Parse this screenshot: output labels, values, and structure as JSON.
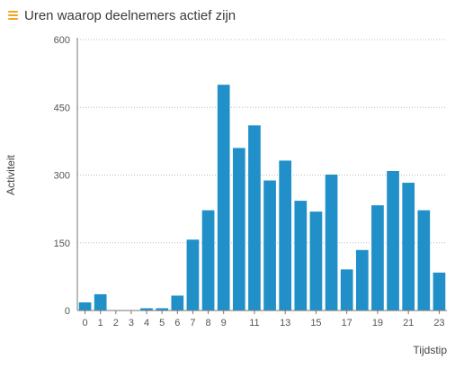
{
  "header": {
    "title": "Uren waarop deelnemers actief zijn",
    "menu_icon": "hamburger-menu-icon"
  },
  "chart_data": {
    "type": "bar",
    "xlabel": "Tijdstip",
    "ylabel": "Activiteit",
    "ylim": [
      0,
      600
    ],
    "yticks": [
      0,
      150,
      300,
      450,
      600
    ],
    "grid": true,
    "x_tick_labels": [
      "0",
      "1",
      "2",
      "3",
      "4",
      "5",
      "6",
      "7",
      "8",
      "9",
      "11",
      "13",
      "15",
      "17",
      "19",
      "21",
      "23"
    ],
    "categories": [
      "0",
      "1",
      "2",
      "3",
      "4",
      "5",
      "6",
      "7",
      "8",
      "9",
      "10",
      "11",
      "12",
      "13",
      "14",
      "15",
      "16",
      "17",
      "18",
      "19",
      "20",
      "21",
      "22",
      "23"
    ],
    "series": [
      {
        "values": [
          18,
          36,
          0,
          0,
          5,
          5,
          33,
          157,
          222,
          500,
          360,
          410,
          288,
          332,
          243,
          219,
          301,
          91,
          134,
          233,
          309,
          283,
          222,
          84
        ]
      }
    ],
    "colors": {
      "bar": "#2190c8",
      "axis": "#777777",
      "grid": "#bbbbbb"
    }
  }
}
